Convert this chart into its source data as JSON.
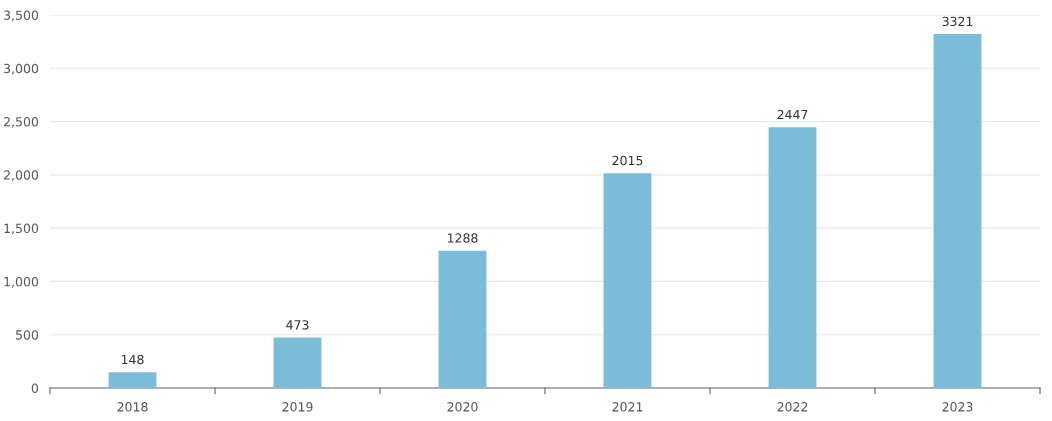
{
  "chart_data": {
    "type": "bar",
    "categories": [
      "2018",
      "2019",
      "2020",
      "2021",
      "2022",
      "2023"
    ],
    "values": [
      148,
      473,
      1288,
      2015,
      2447,
      3321
    ],
    "color": "#7bbcd8",
    "data_labels": true,
    "ylim": [
      0,
      3500
    ],
    "yticks": [
      0,
      500,
      {
        "value": 1000,
        "label": "1,000"
      },
      {
        "value": 1500,
        "label": "1,500"
      },
      {
        "value": 2000,
        "label": "2,000"
      },
      {
        "value": 2500,
        "label": "2,500"
      },
      {
        "value": 3000,
        "label": "3,000"
      },
      {
        "value": 3500,
        "label": "3,500"
      }
    ],
    "grid": "y",
    "legend": false
  }
}
